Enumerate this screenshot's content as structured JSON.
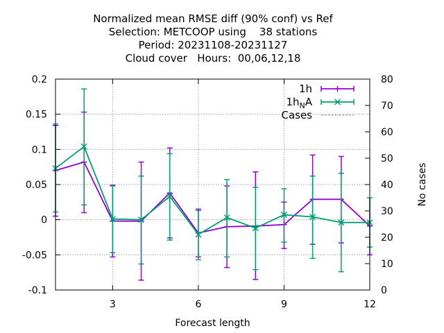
{
  "chart_data": {
    "type": "line",
    "title_lines": [
      "Normalized mean RMSE diff (90% conf) vs Ref",
      "Selection: METCOOP using    38 stations",
      "Period: 20231108-20231127",
      "Cloud cover   Hours:  00,06,12,18"
    ],
    "xlabel": "Forecast length",
    "ylabel": "",
    "y2label": "No cases",
    "xlim": [
      1,
      12
    ],
    "ylim": [
      -0.1,
      0.2
    ],
    "y2lim": [
      0,
      80
    ],
    "x_ticks": [
      3,
      6,
      9,
      12
    ],
    "y_ticks": [
      -0.1,
      -0.05,
      0,
      0.05,
      0.1,
      0.15,
      0.2
    ],
    "y_tick_labels": [
      "-0.1",
      "-0.05",
      "0",
      "0.05",
      "0.1",
      "0.15",
      "0.2"
    ],
    "y2_ticks": [
      0,
      10,
      20,
      30,
      40,
      50,
      60,
      70,
      80
    ],
    "grid": true,
    "legend_position": "top-right",
    "series": [
      {
        "name": "1h",
        "color": "#9400d3",
        "marker": "plus",
        "x": [
          1,
          2,
          3,
          4,
          5,
          6,
          7,
          8,
          9,
          10,
          11,
          12
        ],
        "y": [
          0.07,
          0.082,
          -0.002,
          -0.002,
          0.038,
          -0.019,
          -0.01,
          -0.009,
          -0.007,
          0.029,
          0.029,
          -0.009
        ],
        "y_low": [
          0.005,
          0.01,
          -0.053,
          -0.086,
          -0.026,
          -0.053,
          -0.068,
          -0.085,
          -0.041,
          -0.035,
          -0.033,
          -0.05
        ],
        "y_high": [
          0.134,
          0.153,
          0.049,
          0.082,
          0.102,
          0.015,
          0.048,
          0.068,
          0.025,
          0.092,
          0.09,
          0.031
        ]
      },
      {
        "name_main": "1h",
        "name_sub": "N",
        "name_tail": "A",
        "color": "#009e73",
        "marker": "cross",
        "x": [
          1,
          2,
          3,
          4,
          5,
          6,
          7,
          8,
          9,
          10,
          11,
          12
        ],
        "y": [
          0.073,
          0.104,
          0.001,
          0.0,
          0.033,
          -0.021,
          0.003,
          -0.012,
          0.007,
          0.004,
          -0.004,
          -0.004
        ],
        "y_low": [
          0.011,
          0.021,
          -0.047,
          -0.063,
          -0.029,
          -0.057,
          -0.053,
          -0.071,
          -0.032,
          -0.055,
          -0.074,
          -0.039
        ],
        "y_high": [
          0.136,
          0.186,
          0.048,
          0.062,
          0.094,
          0.013,
          0.057,
          0.046,
          0.044,
          0.062,
          0.066,
          0.031
        ]
      },
      {
        "name": "Cases",
        "color": "#a0a0a0",
        "style": "dashed",
        "axis": "y2",
        "x": [],
        "y": []
      }
    ]
  }
}
